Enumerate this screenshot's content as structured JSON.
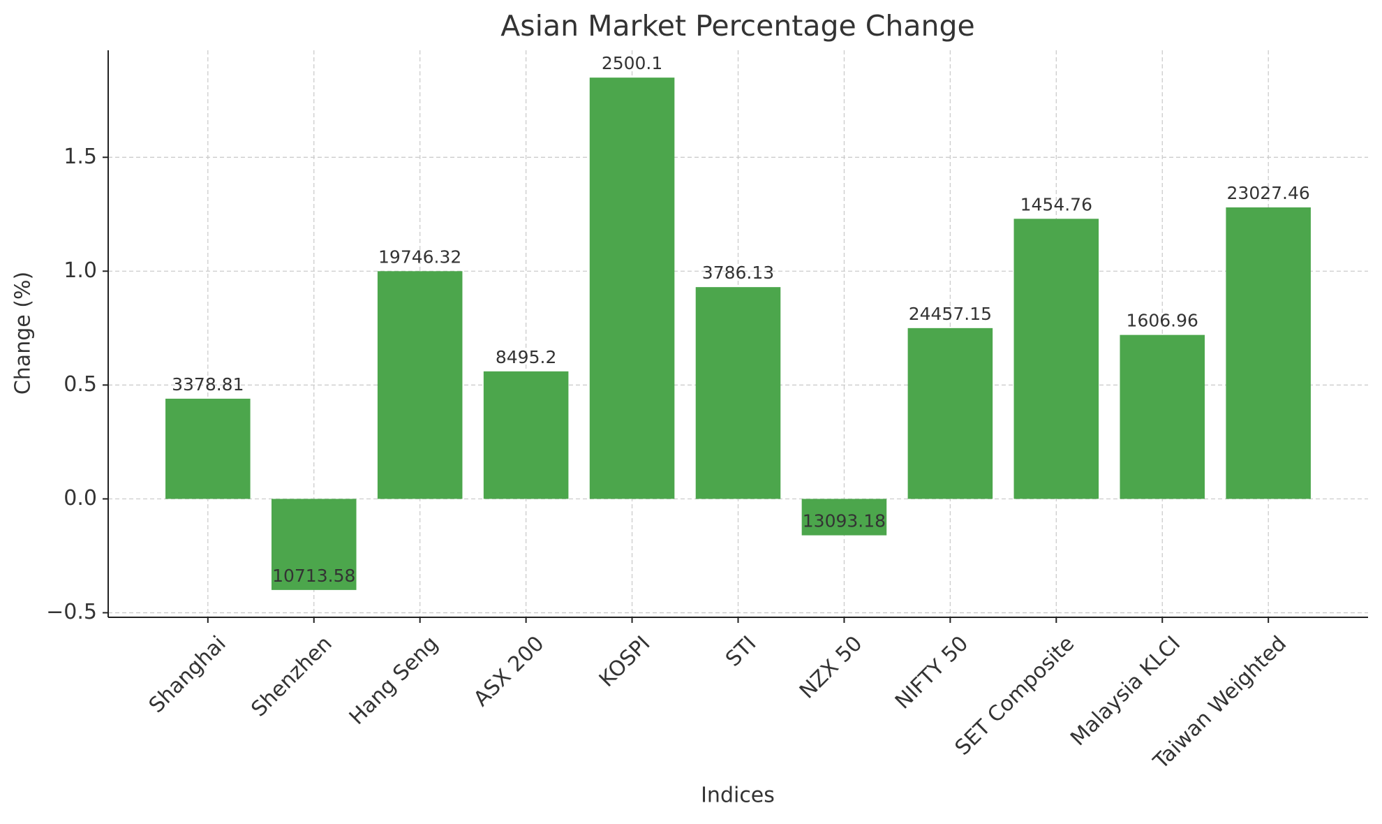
{
  "chart_data": {
    "type": "bar",
    "title": "Asian Market Percentage Change",
    "x_label": "Indices",
    "y_label": "Change (%)",
    "categories": [
      "Shanghai",
      "Shenzhen",
      "Hang Seng",
      "ASX 200",
      "KOSPI",
      "STI",
      "NZX 50",
      "NIFTY 50",
      "SET Composite",
      "Malaysia KLCI",
      "Taiwan Weighted"
    ],
    "values": [
      0.44,
      -0.4,
      1.0,
      0.56,
      1.85,
      0.93,
      -0.16,
      0.75,
      1.23,
      0.72,
      1.28
    ],
    "index_levels": [
      3378.81,
      10713.58,
      19746.32,
      8495.2,
      2500.1,
      3786.13,
      13093.18,
      24457.15,
      1454.76,
      1606.96,
      23027.46
    ],
    "color": "#4ca64c",
    "ylim": [
      -0.52,
      1.97
    ],
    "yticks": [
      {
        "value": -0.5,
        "label": "−0.5"
      },
      {
        "value": 0,
        "label": "0.0"
      },
      {
        "value": 0.5,
        "label": "0.5"
      },
      {
        "value": 1,
        "label": "1.0"
      },
      {
        "value": 1.5,
        "label": "1.5"
      }
    ],
    "grid": true
  }
}
